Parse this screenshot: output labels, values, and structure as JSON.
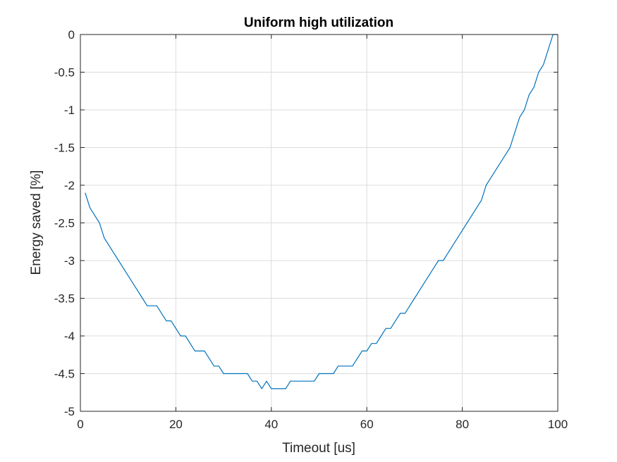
{
  "chart_data": {
    "type": "line",
    "title": "Uniform high utilization",
    "xlabel": "Timeout [us]",
    "ylabel": "Energy saved [%]",
    "xlim": [
      0,
      100
    ],
    "ylim": [
      -5,
      0
    ],
    "xticks": [
      0,
      20,
      40,
      60,
      80,
      100
    ],
    "yticks": [
      0,
      -0.5,
      -1,
      -1.5,
      -2,
      -2.5,
      -3,
      -3.5,
      -4,
      -4.5,
      -5
    ],
    "grid": true,
    "series": [
      {
        "color": "#0072bd",
        "x": [
          1,
          2,
          3,
          4,
          5,
          6,
          7,
          8,
          9,
          10,
          11,
          12,
          13,
          14,
          15,
          16,
          17,
          18,
          19,
          20,
          21,
          22,
          23,
          24,
          25,
          26,
          27,
          28,
          29,
          30,
          31,
          32,
          33,
          34,
          35,
          36,
          37,
          38,
          39,
          40,
          41,
          42,
          43,
          44,
          45,
          46,
          47,
          48,
          49,
          50,
          51,
          52,
          53,
          54,
          55,
          56,
          57,
          58,
          59,
          60,
          61,
          62,
          63,
          64,
          65,
          66,
          67,
          68,
          69,
          70,
          71,
          72,
          73,
          74,
          75,
          76,
          77,
          78,
          79,
          80,
          81,
          82,
          83,
          84,
          85,
          86,
          87,
          88,
          89,
          90,
          91,
          92,
          93,
          94,
          95,
          96,
          97,
          98,
          99,
          100
        ],
        "y": [
          -2.1,
          -2.3,
          -2.4,
          -2.5,
          -2.7,
          -2.8,
          -2.9,
          -3.0,
          -3.1,
          -3.2,
          -3.3,
          -3.4,
          -3.5,
          -3.6,
          -3.6,
          -3.6,
          -3.7,
          -3.8,
          -3.8,
          -3.9,
          -4.0,
          -4.0,
          -4.1,
          -4.2,
          -4.2,
          -4.2,
          -4.3,
          -4.4,
          -4.4,
          -4.5,
          -4.5,
          -4.5,
          -4.5,
          -4.5,
          -4.5,
          -4.6,
          -4.6,
          -4.7,
          -4.6,
          -4.7,
          -4.7,
          -4.7,
          -4.7,
          -4.6,
          -4.6,
          -4.6,
          -4.6,
          -4.6,
          -4.6,
          -4.5,
          -4.5,
          -4.5,
          -4.5,
          -4.4,
          -4.4,
          -4.4,
          -4.4,
          -4.3,
          -4.2,
          -4.2,
          -4.1,
          -4.1,
          -4.0,
          -3.9,
          -3.9,
          -3.8,
          -3.7,
          -3.7,
          -3.6,
          -3.5,
          -3.4,
          -3.3,
          -3.2,
          -3.1,
          -3.0,
          -3.0,
          -2.9,
          -2.8,
          -2.7,
          -2.6,
          -2.5,
          -2.4,
          -2.3,
          -2.2,
          -2.0,
          -1.9,
          -1.8,
          -1.7,
          -1.6,
          -1.5,
          -1.3,
          -1.1,
          -1.0,
          -0.8,
          -0.7,
          -0.5,
          -0.4,
          -0.2,
          0.0,
          0.0
        ]
      }
    ]
  }
}
